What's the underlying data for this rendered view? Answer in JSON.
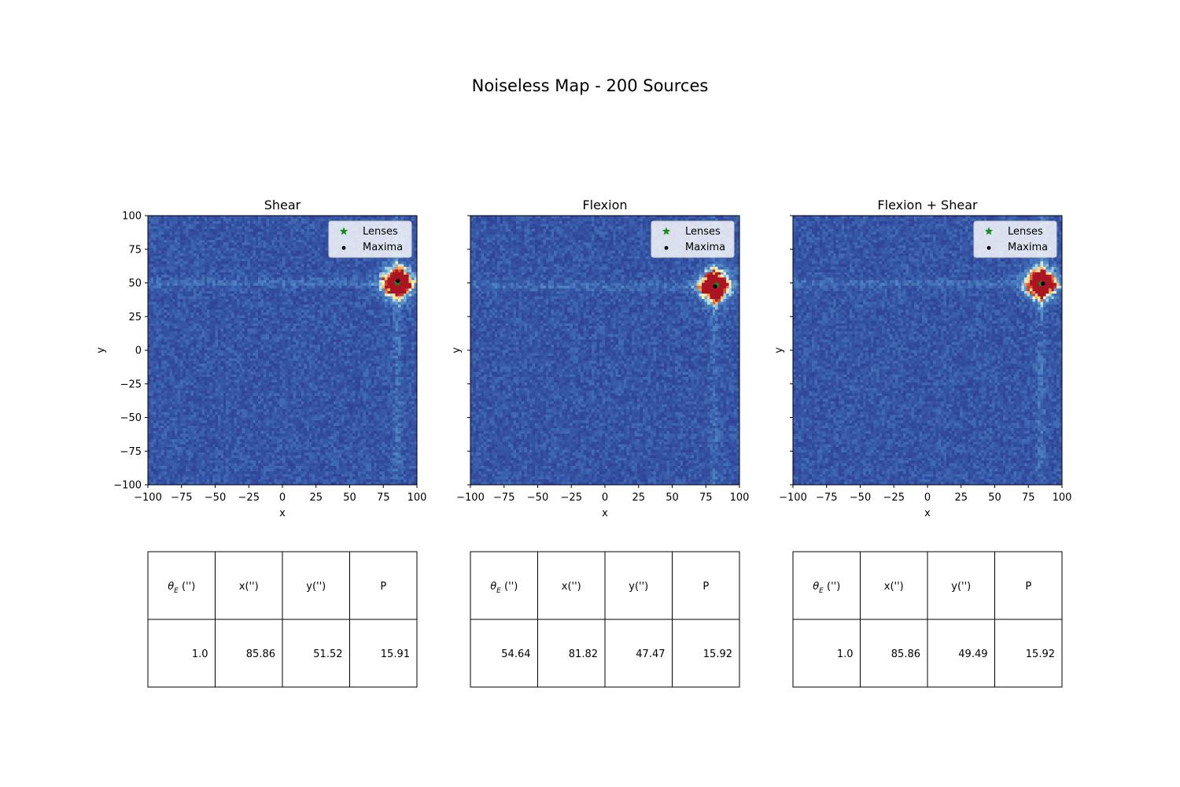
{
  "title": "Noiseless Map - 200 Sources",
  "colors": {
    "lens_marker": "#1a8c1a",
    "maxima_marker": "#000000",
    "background_low": "#2d3e9a",
    "background_mid": "#4f7fc4",
    "peak": "#c81e1e"
  },
  "legend": {
    "lenses": "Lenses",
    "maxima": "Maxima"
  },
  "table_headers": [
    "θE ('')",
    "x('')",
    "y('')",
    "P"
  ],
  "chart_data": [
    {
      "type": "heatmap",
      "title": "Shear",
      "xlabel": "x",
      "ylabel": "y",
      "xlim": [
        -100,
        100
      ],
      "ylim": [
        -100,
        100
      ],
      "xticks": [
        -100,
        -75,
        -50,
        -25,
        0,
        25,
        50,
        75,
        100
      ],
      "yticks": [
        -100,
        -75,
        -50,
        -25,
        0,
        25,
        50,
        75,
        100
      ],
      "show_ytick_labels": true,
      "lenses": [
        {
          "x": 85.5,
          "y": 50.0
        }
      ],
      "maxima": [
        {
          "x": 85.86,
          "y": 51.52
        }
      ],
      "peak": {
        "x": 85.5,
        "y": 50.0
      },
      "table": [
        "1.0",
        "85.86",
        "51.52",
        "15.91"
      ]
    },
    {
      "type": "heatmap",
      "title": "Flexion",
      "xlabel": "x",
      "ylabel": "y",
      "xlim": [
        -100,
        100
      ],
      "ylim": [
        -100,
        100
      ],
      "xticks": [
        -100,
        -75,
        -50,
        -25,
        0,
        25,
        50,
        75,
        100
      ],
      "yticks": [
        -100,
        -75,
        -50,
        -25,
        0,
        25,
        50,
        75,
        100
      ],
      "show_ytick_labels": false,
      "lenses": [
        {
          "x": 83.0,
          "y": 48.5
        }
      ],
      "maxima": [
        {
          "x": 81.82,
          "y": 47.47
        }
      ],
      "peak": {
        "x": 81.5,
        "y": 47.5
      },
      "table": [
        "54.64",
        "81.82",
        "47.47",
        "15.92"
      ]
    },
    {
      "type": "heatmap",
      "title": "Flexion + Shear",
      "xlabel": "x",
      "ylabel": "y",
      "xlim": [
        -100,
        100
      ],
      "ylim": [
        -100,
        100
      ],
      "xticks": [
        -100,
        -75,
        -50,
        -25,
        0,
        25,
        50,
        75,
        100
      ],
      "yticks": [
        -100,
        -75,
        -50,
        -25,
        0,
        25,
        50,
        75,
        100
      ],
      "show_ytick_labels": false,
      "lenses": [
        {
          "x": 84.5,
          "y": 49.5
        }
      ],
      "maxima": [
        {
          "x": 85.86,
          "y": 49.49
        }
      ],
      "peak": {
        "x": 84.5,
        "y": 49.5
      },
      "table": [
        "1.0",
        "85.86",
        "49.49",
        "15.92"
      ]
    }
  ]
}
